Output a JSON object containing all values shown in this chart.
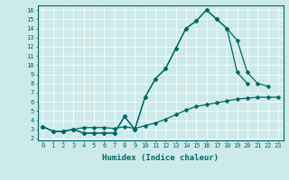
{
  "xlabel": "Humidex (Indice chaleur)",
  "xlim": [
    -0.5,
    23.5
  ],
  "ylim": [
    1.8,
    16.5
  ],
  "xticks": [
    0,
    1,
    2,
    3,
    4,
    5,
    6,
    7,
    8,
    9,
    10,
    11,
    12,
    13,
    14,
    15,
    16,
    17,
    18,
    19,
    20,
    21,
    22,
    23
  ],
  "yticks": [
    2,
    3,
    4,
    5,
    6,
    7,
    8,
    9,
    10,
    11,
    12,
    13,
    14,
    15,
    16
  ],
  "bg_color": "#cdeaea",
  "line_color": "#006666",
  "line1_x": [
    0,
    1,
    2,
    3,
    4,
    5,
    6,
    7,
    8,
    9,
    10,
    11,
    12,
    13,
    14,
    15,
    16,
    17,
    18,
    19,
    20,
    21,
    22,
    23
  ],
  "line1_y": [
    3.3,
    2.8,
    2.8,
    3.0,
    3.2,
    3.2,
    3.2,
    3.1,
    3.3,
    3.1,
    3.4,
    3.7,
    4.1,
    4.6,
    5.1,
    5.5,
    5.7,
    5.9,
    6.1,
    6.3,
    6.4,
    6.5,
    6.5,
    6.5
  ],
  "line2_x": [
    0,
    1,
    2,
    3,
    4,
    5,
    6,
    7,
    8,
    9,
    10,
    11,
    12,
    13,
    14,
    15,
    16,
    17,
    18,
    19,
    20,
    21,
    22
  ],
  "line2_y": [
    3.3,
    2.8,
    2.8,
    3.0,
    2.6,
    2.6,
    2.6,
    2.6,
    4.4,
    3.0,
    6.5,
    8.5,
    9.6,
    11.8,
    14.0,
    14.8,
    16.0,
    15.0,
    14.0,
    12.7,
    9.2,
    8.0,
    7.7
  ],
  "line3_x": [
    0,
    1,
    2,
    3,
    4,
    5,
    6,
    7,
    8,
    9,
    10,
    11,
    12,
    13,
    14,
    15,
    16,
    17,
    18,
    19,
    20
  ],
  "line3_y": [
    3.3,
    2.8,
    2.8,
    3.0,
    2.6,
    2.6,
    2.6,
    2.6,
    4.4,
    3.0,
    6.5,
    8.5,
    9.6,
    11.8,
    14.0,
    14.8,
    16.0,
    15.0,
    14.0,
    9.2,
    8.0
  ],
  "marker_size": 2.5,
  "linewidth": 0.9,
  "tick_fontsize": 5.0,
  "xlabel_fontsize": 6.5
}
